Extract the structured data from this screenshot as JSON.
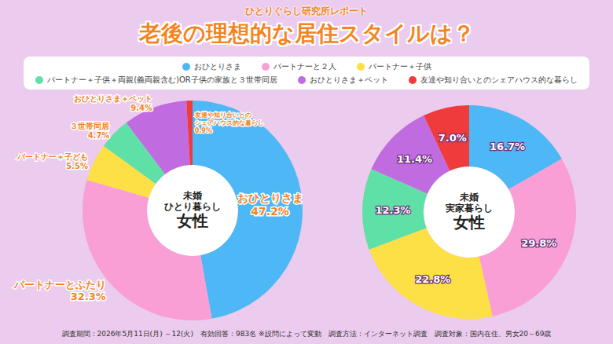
{
  "header": "ひとりぐらし研究所レポート",
  "title": "老後の理想的な居住スタイルは？",
  "legend": "top",
  "chart_data": [
    {
      "type": "pie",
      "title": "未婚 ひとり暮らし 女性",
      "categories": [
        "おひとりさま",
        "パートナーと２人",
        "パートナー＋子供",
        "パートナー＋子供＋両親(義両親含む)OR子供の家族と３世帯同居",
        "おひとりさま＋ペット",
        "友達や知り合いとのシェアハウス的な暮らし"
      ],
      "values": [
        47.2,
        32.3,
        5.5,
        4.7,
        9.4,
        0.9
      ],
      "value_labels": [
        "47.2%",
        "32.3%",
        "5.5%",
        "4.7%",
        "9.4%",
        "0.9%"
      ],
      "slice_labels": [
        "おひとりさま",
        "パートナーとふたり",
        "パートナー＋子ども",
        "３世帯同居",
        "おひとりさま＋ペット",
        "友達や知り合いとのシェアハウス的な暮らし"
      ],
      "colors": [
        "#4db8f5",
        "#f99fd5",
        "#fde046",
        "#5fe0a6",
        "#c06be0",
        "#ef3b3b"
      ],
      "data_labels": true
    },
    {
      "type": "pie",
      "title": "未婚 実家暮らし 女性",
      "categories": [
        "おひとりさま",
        "パートナーと２人",
        "パートナー＋子供",
        "パートナー＋子供＋両親(義両親含む)OR子供の家族と３世帯同居",
        "おひとりさま＋ペット",
        "友達や知り合いとのシェアハウス的な暮らし"
      ],
      "values": [
        16.7,
        29.8,
        22.8,
        12.3,
        11.4,
        7.0
      ],
      "value_labels": [
        "16.7%",
        "29.8%",
        "22.8%",
        "12.3%",
        "11.4%",
        "7.0%"
      ],
      "colors": [
        "#4db8f5",
        "#f99fd5",
        "#fde046",
        "#5fe0a6",
        "#c06be0",
        "#ef3b3b"
      ],
      "data_labels": true
    }
  ],
  "footer": "調査期間：2026年5月11日(月) ～12(火)　有効回答：983名 ※設問によって変動　調査方法：インターネット調査　調査対象：国内在住、男女20～69歳"
}
